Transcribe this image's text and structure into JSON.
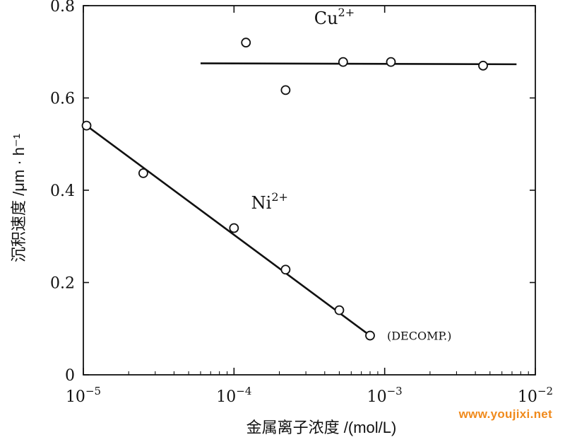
{
  "chart_data": {
    "type": "scatter",
    "title": "",
    "xlabel": "金属离子浓度 /(mol/L)",
    "ylabel": "沉积速度 /μm · h⁻¹",
    "xscale": "log",
    "xlim": [
      1e-05,
      0.01
    ],
    "ylim": [
      0,
      0.8
    ],
    "x_ticks": [
      1e-05,
      0.0001,
      0.001,
      0.01
    ],
    "x_tick_labels": [
      {
        "base": "10",
        "exp": "−5"
      },
      {
        "base": "10",
        "exp": "−4"
      },
      {
        "base": "10",
        "exp": "−3"
      },
      {
        "base": "10",
        "exp": "−2"
      }
    ],
    "y_ticks": [
      0,
      0.2,
      0.4,
      0.6,
      0.8
    ],
    "y_tick_labels": [
      "0",
      "0.2",
      "0.4",
      "0.6",
      "0.8"
    ],
    "grid": false,
    "legend": "none",
    "series": [
      {
        "name": "Cu2+",
        "label": {
          "base": "Cu",
          "sup": "2+"
        },
        "marker": "open-circle",
        "points": [
          {
            "x": 0.00012,
            "y": 0.72
          },
          {
            "x": 0.00022,
            "y": 0.617
          },
          {
            "x": 0.00053,
            "y": 0.678
          },
          {
            "x": 0.0011,
            "y": 0.678
          },
          {
            "x": 0.0045,
            "y": 0.67
          }
        ],
        "fit_line": [
          {
            "x": 6e-05,
            "y": 0.675
          },
          {
            "x": 0.0075,
            "y": 0.673
          }
        ]
      },
      {
        "name": "Ni2+",
        "label": {
          "base": "Ni",
          "sup": "2+"
        },
        "marker": "open-circle",
        "points": [
          {
            "x": 1.05e-05,
            "y": 0.54
          },
          {
            "x": 2.5e-05,
            "y": 0.437
          },
          {
            "x": 0.0001,
            "y": 0.318
          },
          {
            "x": 0.00022,
            "y": 0.228
          },
          {
            "x": 0.0005,
            "y": 0.14
          },
          {
            "x": 0.0008,
            "y": 0.085
          }
        ],
        "fit_line": [
          {
            "x": 1.05e-05,
            "y": 0.54
          },
          {
            "x": 0.0008,
            "y": 0.085
          }
        ]
      }
    ],
    "annotations": [
      {
        "text": "(DECOMP.)",
        "x": 0.0008,
        "y": 0.085
      }
    ]
  },
  "watermark": "www.youjixi.net",
  "colors": {
    "ink": "#111111",
    "watermark": "#f08a1c"
  }
}
